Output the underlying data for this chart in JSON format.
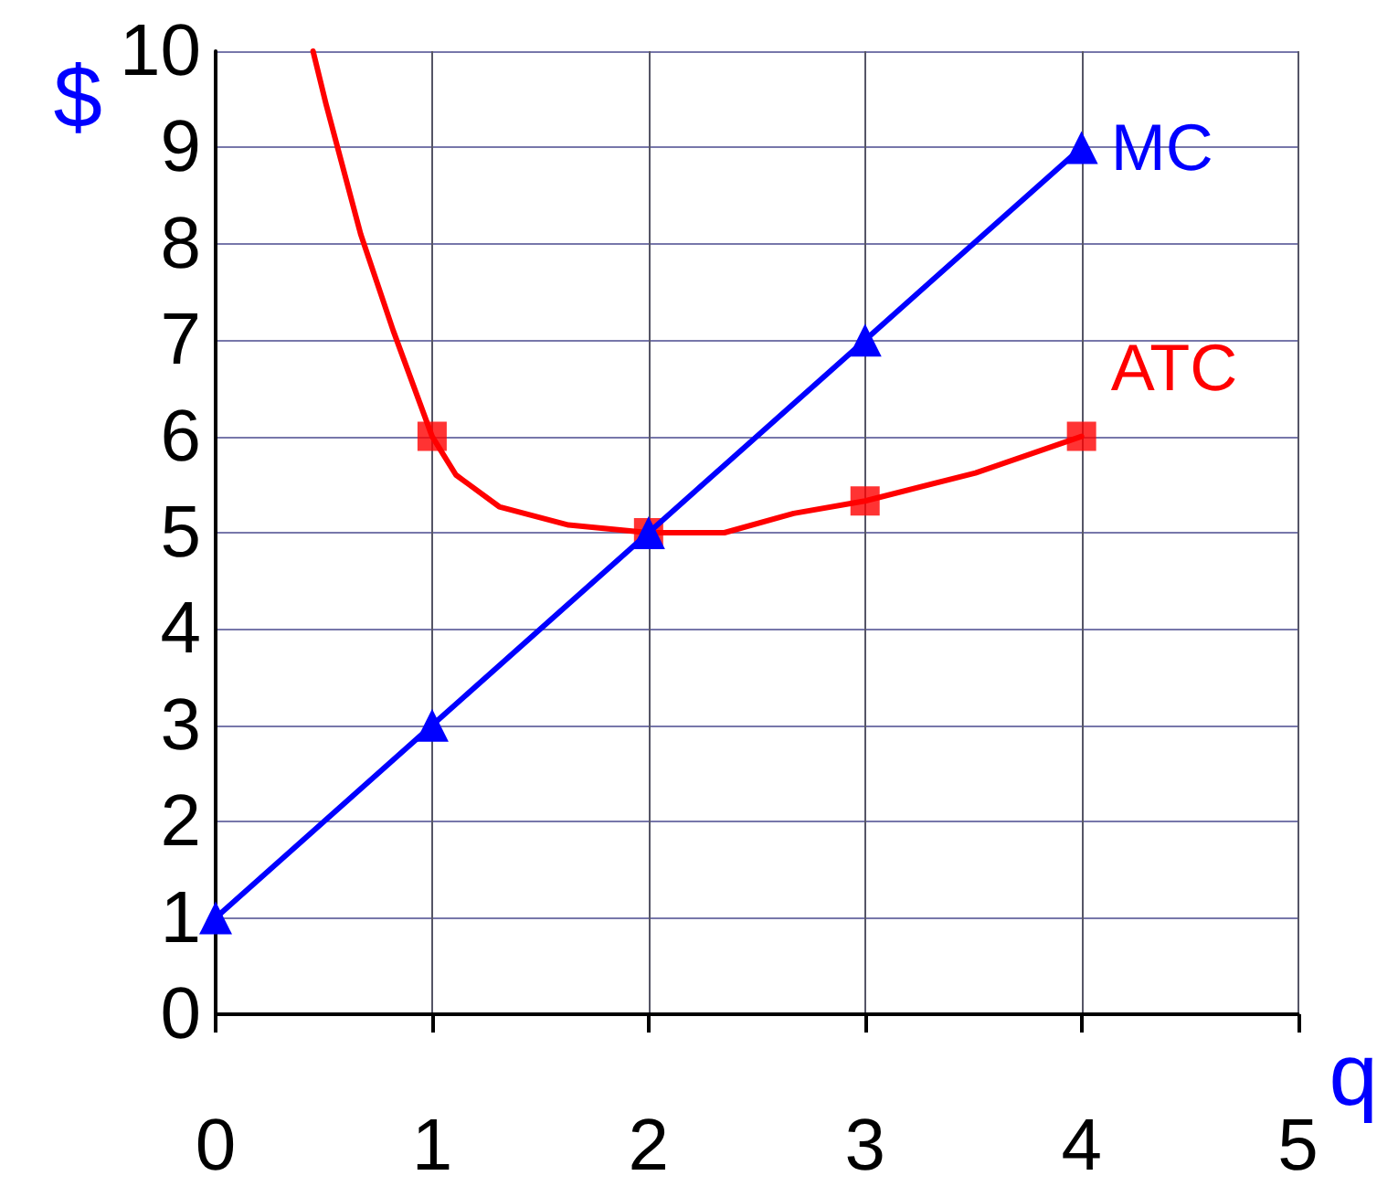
{
  "chart_data": {
    "type": "line",
    "xlabel": "q",
    "ylabel": "$",
    "xlim": [
      0,
      5
    ],
    "ylim": [
      0,
      10
    ],
    "xticks": [
      0,
      1,
      2,
      3,
      4,
      5
    ],
    "yticks": [
      0,
      1,
      2,
      3,
      4,
      5,
      6,
      7,
      8,
      9,
      10
    ],
    "grid": true,
    "legend": false,
    "line_style": "solid",
    "series": [
      {
        "name": "MC",
        "color": "#0000ff",
        "marker": "triangle",
        "x": [
          0,
          1,
          2,
          3,
          4
        ],
        "values": [
          1,
          3,
          5,
          7,
          9
        ]
      },
      {
        "name": "ATC",
        "color": "#ff0000",
        "marker": "none",
        "x": [
          0.45,
          0.51,
          0.67,
          0.82,
          1,
          1.11,
          1.31,
          1.63,
          2,
          2.35,
          2.67,
          3,
          3.51,
          4
        ],
        "values": [
          10,
          9.45,
          8.1,
          7.1,
          6,
          5.6,
          5.27,
          5.08,
          5,
          5,
          5.2,
          5.33,
          5.62,
          6
        ]
      },
      {
        "type": "scatter",
        "color": "#ff0000",
        "marker": "square",
        "x": [
          1,
          2,
          3,
          4
        ],
        "values": [
          6,
          5,
          5.33,
          6
        ]
      }
    ]
  }
}
